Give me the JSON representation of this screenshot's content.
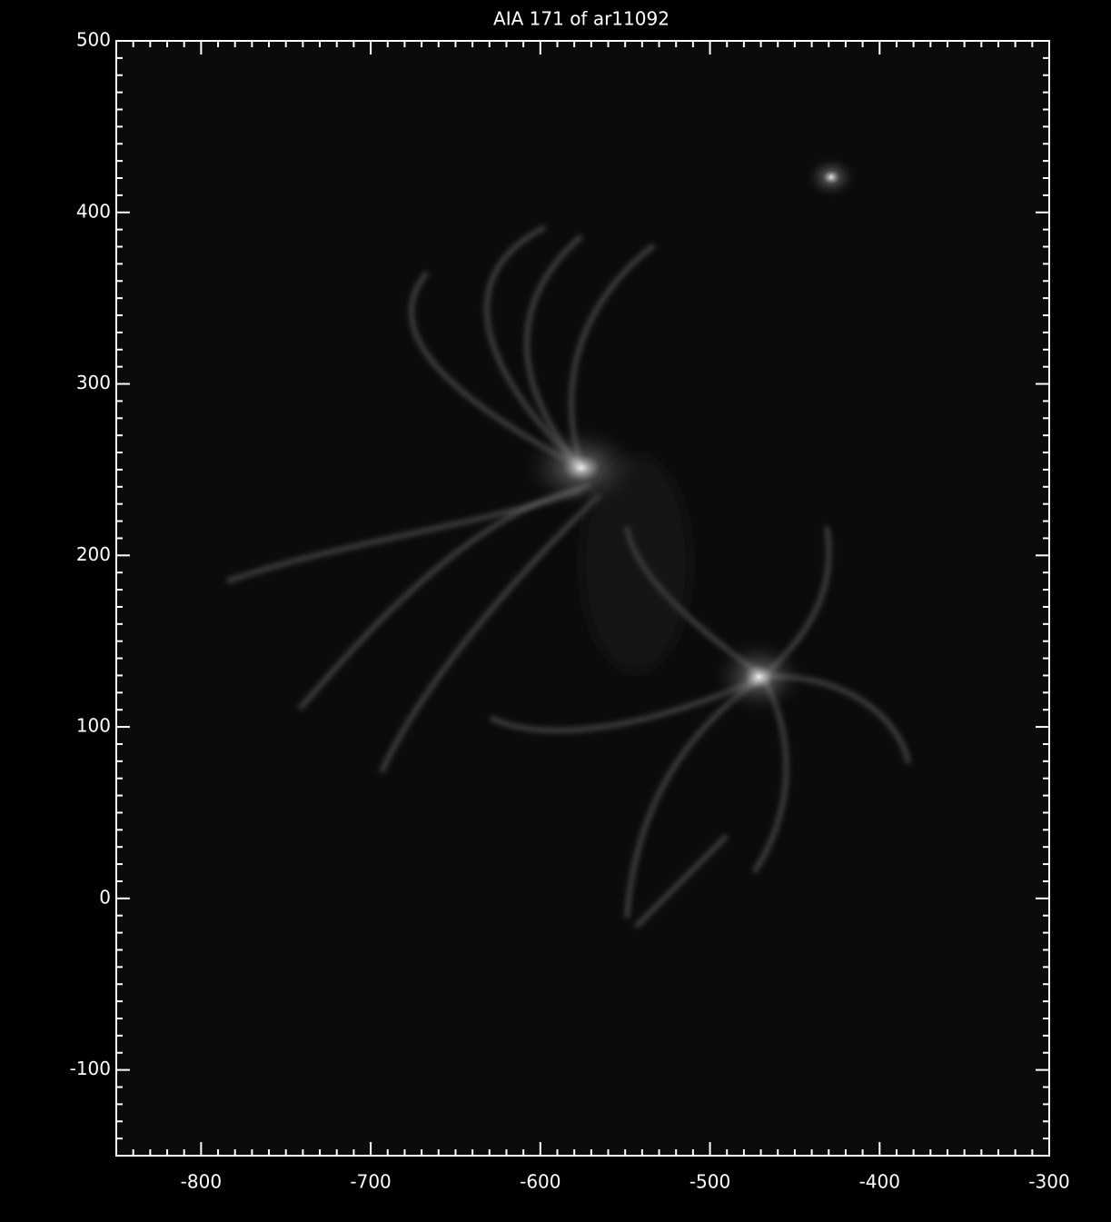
{
  "chart_data": {
    "type": "image",
    "title": "AIA 171 of ar11092",
    "xlim": [
      -850,
      -300
    ],
    "xticks": [
      -800,
      -700,
      -600,
      -500,
      -400,
      -300
    ],
    "ylim": [
      -150,
      500
    ],
    "yticks": [
      -100,
      0,
      100,
      200,
      300,
      400,
      500
    ]
  }
}
